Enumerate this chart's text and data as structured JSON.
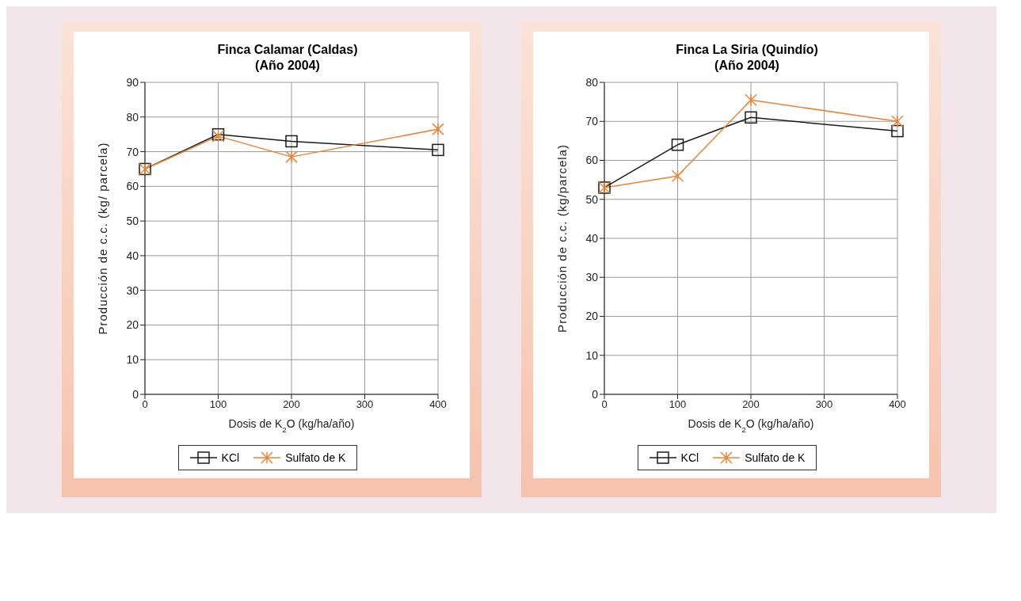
{
  "chart_data": [
    {
      "type": "line",
      "title": "Finca Calamar (Caldas)\n(Año 2004)",
      "xlabel": "Dosis de K$_{2}$O (kg/ha/año)",
      "ylabel": "Producción de c.c. (kg/ parcela)",
      "x": [
        0,
        100,
        200,
        400
      ],
      "xlim": [
        0,
        400
      ],
      "xticks": [
        0,
        100,
        200,
        300,
        400
      ],
      "ylim": [
        0,
        90
      ],
      "yticks": [
        0,
        10,
        20,
        30,
        40,
        50,
        60,
        70,
        80,
        90
      ],
      "grid": true,
      "legend": "bottom",
      "series": [
        {
          "name": "KCl",
          "color": "#1a1a1a",
          "marker": "square",
          "values": [
            65,
            75,
            73,
            70.5
          ]
        },
        {
          "name": "Sulfato de K",
          "color": "#e8843a",
          "marker": "cross",
          "values": [
            65,
            74.5,
            68.5,
            76.5
          ]
        }
      ]
    },
    {
      "type": "line",
      "title": "Finca La Siria (Quindío)\n(Año 2004)",
      "xlabel": "Dosis de K$_{2}$O (kg/ha/año)",
      "ylabel": "Producción de c.c. (kg/parcela)",
      "x": [
        0,
        100,
        200,
        400
      ],
      "xlim": [
        0,
        400
      ],
      "xticks": [
        0,
        100,
        200,
        300,
        400
      ],
      "ylim": [
        0,
        80
      ],
      "yticks": [
        0,
        10,
        20,
        30,
        40,
        50,
        60,
        70,
        80
      ],
      "grid": true,
      "legend": "bottom",
      "series": [
        {
          "name": "KCl",
          "color": "#1a1a1a",
          "marker": "square",
          "values": [
            53,
            64,
            71,
            67.5
          ]
        },
        {
          "name": "Sulfato de K",
          "color": "#e8843a",
          "marker": "cross",
          "values": [
            53,
            56,
            75.5,
            70
          ]
        }
      ]
    }
  ]
}
